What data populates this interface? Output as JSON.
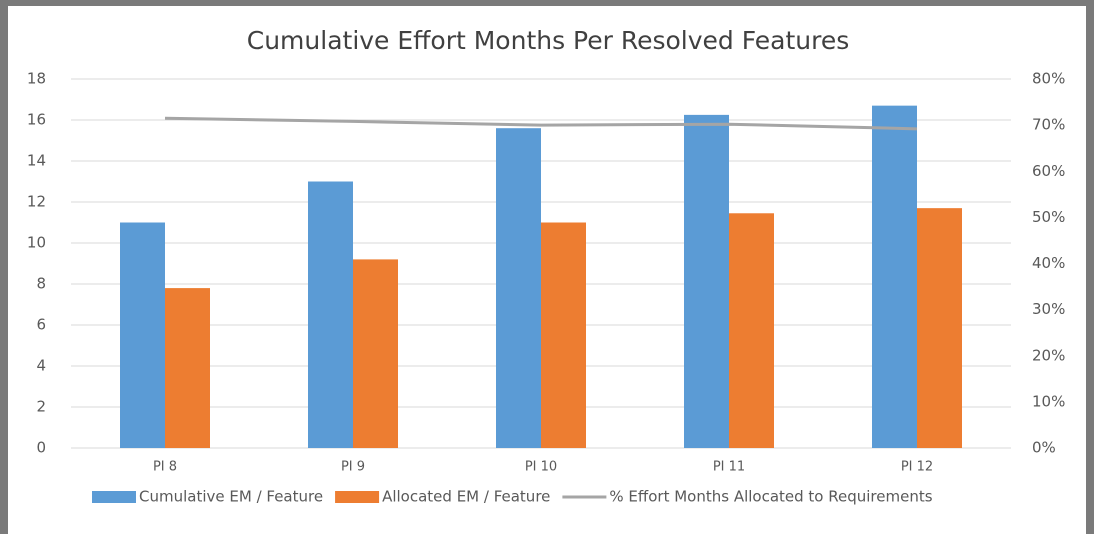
{
  "chart_data": {
    "type": "bar",
    "title": "Cumulative Effort Months Per Resolved Features",
    "categories": [
      "PI 8",
      "PI 9",
      "PI 10",
      "PI 11",
      "PI 12"
    ],
    "series": [
      {
        "name": "Cumulative EM / Feature",
        "color": "#5b9bd5",
        "type": "bar",
        "values": [
          11,
          13,
          15.6,
          16.25,
          16.7
        ]
      },
      {
        "name": "Allocated EM / Feature",
        "color": "#ed7d31",
        "type": "bar",
        "values": [
          7.8,
          9.2,
          11,
          11.45,
          11.7
        ]
      },
      {
        "name": "% Effort Months Allocated to Requirements",
        "color": "#a5a5a5",
        "type": "line",
        "axis": "y2",
        "values": [
          71.5,
          70.8,
          70.0,
          70.2,
          69.2
        ]
      }
    ],
    "ylim": [
      0,
      18
    ],
    "yticks": [
      0,
      2,
      4,
      6,
      8,
      10,
      12,
      14,
      16,
      18
    ],
    "y2lim": [
      0,
      80
    ],
    "y2ticks": [
      {
        "value": 0,
        "label": "0%"
      },
      {
        "value": 10,
        "label": "10%"
      },
      {
        "value": 20,
        "label": "20%"
      },
      {
        "value": 30,
        "label": "30%"
      },
      {
        "value": 40,
        "label": "40%"
      },
      {
        "value": 50,
        "label": "50%"
      },
      {
        "value": 60,
        "label": "60%"
      },
      {
        "value": 70,
        "label": "70%"
      },
      {
        "value": 80,
        "label": "80%"
      }
    ],
    "grid": true,
    "legend": "bottom"
  }
}
